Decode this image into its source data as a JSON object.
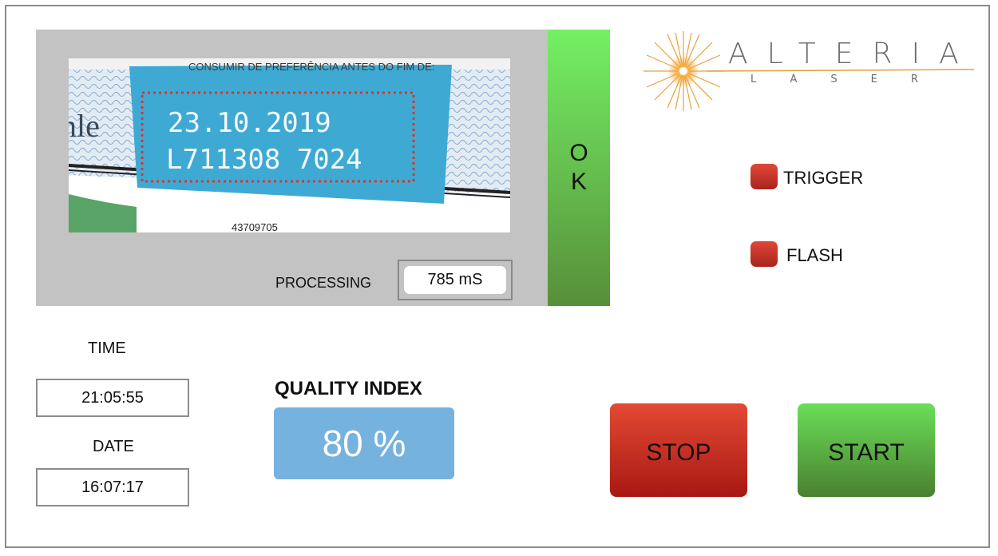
{
  "camera": {
    "print_date": "23.10.2019",
    "print_lot": "L711308 7024",
    "header_text": "CONSUMIR DE PREFERÊNCIA ANTES DO FIM DE:",
    "barcode_number": "43709705",
    "side_text": "nle",
    "status": [
      "O",
      "K"
    ],
    "processing_label": "PROCESSING",
    "processing_value": "785 mS"
  },
  "logo": {
    "brand": "ALTERIA",
    "sub": "LASER"
  },
  "indicators": [
    {
      "label": "TRIGGER",
      "state": "off",
      "color": "#c8301f"
    },
    {
      "label": "FLASH",
      "state": "off",
      "color": "#c8301f"
    }
  ],
  "time": {
    "label": "TIME",
    "value": "21:05:55"
  },
  "date": {
    "label": "DATE",
    "value": "16:07:17"
  },
  "quality": {
    "label": "QUALITY INDEX",
    "value": "80 %"
  },
  "buttons": {
    "stop": "STOP",
    "start": "START"
  },
  "colors": {
    "ok_green": "#6ad058",
    "quality_blue": "#76b2de",
    "stop_red": "#c8301f",
    "start_green": "#5cb844"
  }
}
